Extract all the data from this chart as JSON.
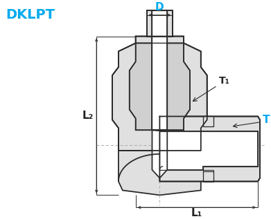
{
  "title": "DKLPT",
  "title_color": "#00aaee",
  "label_D": "D",
  "label_L1": "L₁",
  "label_L2": "L₂",
  "label_T": "T",
  "label_T1": "T₁",
  "label_color_blue": "#00aaee",
  "label_color_black": "#222222",
  "bg_color": "#ffffff",
  "line_color": "#2a2a2a",
  "fill_outer": "#e0e0e0",
  "fill_hex": "#d0d0d0",
  "fig_width": 3.91,
  "fig_height": 3.17,
  "dpi": 100
}
